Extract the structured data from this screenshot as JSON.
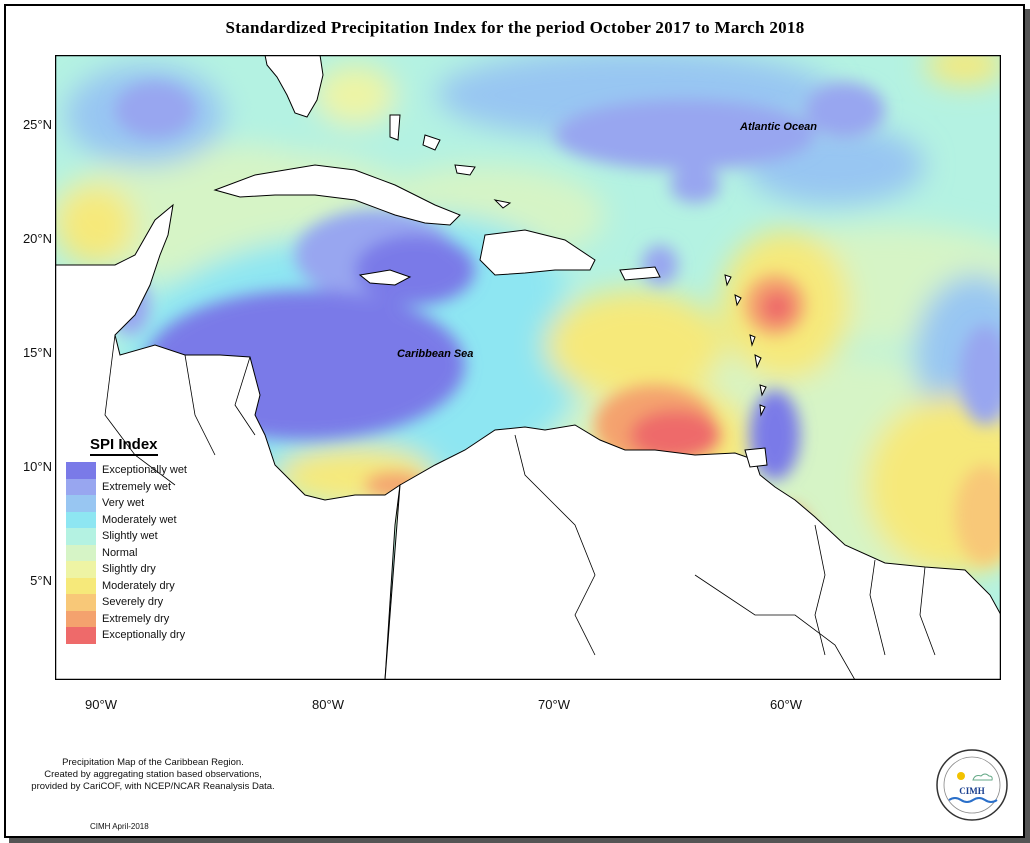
{
  "title": "Standardized Precipitation Index for the period October 2017 to March 2018",
  "map_labels": {
    "atlantic": "Atlantic Ocean",
    "caribbean": "Caribbean Sea"
  },
  "y_ticks": [
    "25°N",
    "20°N",
    "15°N",
    "10°N",
    "5°N"
  ],
  "x_ticks": [
    "90°W",
    "80°W",
    "70°W",
    "60°W"
  ],
  "legend": {
    "title": "SPI Index",
    "items": [
      {
        "label": "Exceptionally wet",
        "color": "#7a7ae8"
      },
      {
        "label": "Extremely wet",
        "color": "#98a6f0"
      },
      {
        "label": "Very wet",
        "color": "#98c6f2"
      },
      {
        "label": "Moderately wet",
        "color": "#8ee6f2"
      },
      {
        "label": "Slightly wet",
        "color": "#b4f2e2"
      },
      {
        "label": "Normal",
        "color": "#d6f4c6"
      },
      {
        "label": "Slightly dry",
        "color": "#eef4a4"
      },
      {
        "label": "Moderately dry",
        "color": "#f6e97a"
      },
      {
        "label": "Severely dry",
        "color": "#f8c878"
      },
      {
        "label": "Extremely dry",
        "color": "#f4a26e"
      },
      {
        "label": "Exceptionally dry",
        "color": "#ee6a6a"
      }
    ]
  },
  "note": {
    "line1": "Precipitation Map of the Caribbean Region.",
    "line2": "Created by aggregating station based observations,",
    "line3": "provided by CariCOF, with NCEP/NCAR Reanalysis Data."
  },
  "credit": "CIMH April-2018",
  "logo_text": "CIMH"
}
